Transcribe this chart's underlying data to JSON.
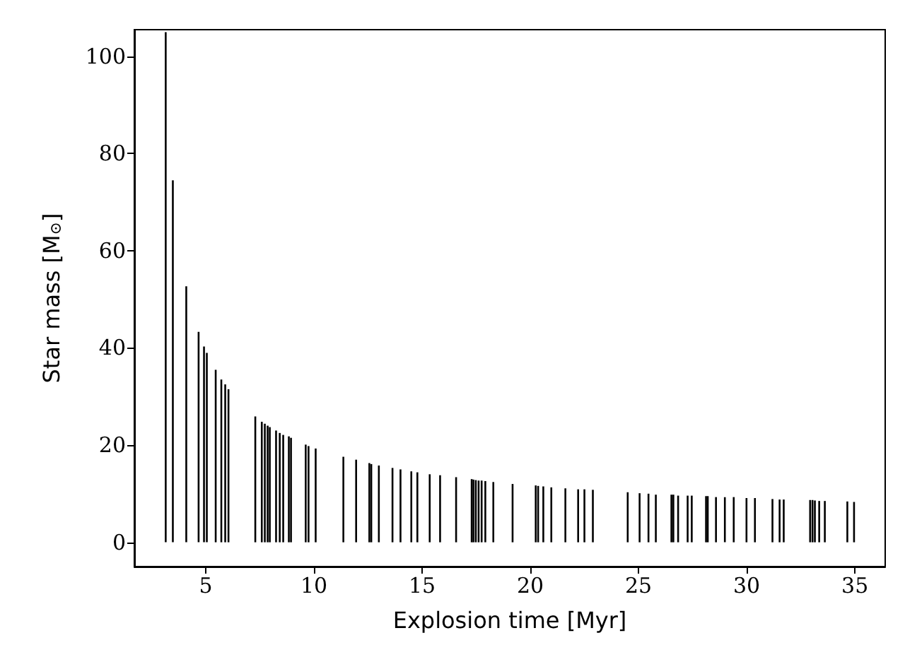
{
  "chart_data": {
    "type": "bar",
    "xlabel": "Explosion time [Myr]",
    "ylabel": "Star mass [M$_{⊙}$]",
    "color": "#000000",
    "x": [
      3.15,
      3.48,
      4.1,
      4.67,
      4.92,
      5.05,
      5.46,
      5.72,
      5.9,
      6.05,
      7.29,
      7.59,
      7.73,
      7.86,
      7.96,
      8.25,
      8.42,
      8.58,
      8.84,
      8.94,
      9.62,
      9.75,
      10.08,
      11.36,
      11.95,
      12.56,
      12.65,
      13.0,
      13.63,
      14.0,
      14.5,
      14.78,
      15.35,
      15.83,
      16.57,
      17.29,
      17.37,
      17.48,
      17.61,
      17.75,
      17.92,
      18.29,
      19.18,
      20.25,
      20.36,
      20.6,
      20.97,
      21.62,
      22.21,
      22.5,
      22.89,
      24.5,
      25.05,
      25.46,
      25.8,
      26.52,
      26.61,
      26.83,
      27.27,
      27.46,
      28.12,
      28.2,
      28.58,
      28.99,
      29.4,
      29.99,
      30.38,
      31.19,
      31.52,
      31.71,
      32.93,
      33.04,
      33.15,
      33.35,
      33.61,
      34.65,
      34.96
    ],
    "values": [
      105,
      74.5,
      52.7,
      43.3,
      40.3,
      39,
      35.5,
      33.5,
      32.5,
      31.5,
      25.9,
      24.8,
      24.4,
      24.0,
      23.7,
      23.0,
      22.5,
      22.1,
      21.8,
      21.5,
      20.1,
      19.8,
      19.3,
      17.6,
      17.0,
      16.3,
      16.1,
      15.8,
      15.3,
      15.0,
      14.6,
      14.4,
      14.0,
      13.8,
      13.4,
      13.0,
      12.9,
      12.8,
      12.7,
      12.7,
      12.6,
      12.4,
      12.0,
      11.7,
      11.6,
      11.5,
      11.3,
      11.1,
      10.9,
      10.9,
      10.8,
      10.3,
      10.1,
      10.0,
      9.8,
      9.8,
      9.8,
      9.6,
      9.6,
      9.6,
      9.5,
      9.5,
      9.3,
      9.3,
      9.3,
      9.1,
      9.1,
      8.9,
      8.8,
      8.8,
      8.7,
      8.7,
      8.6,
      8.5,
      8.5,
      8.4,
      8.3
    ],
    "xlim": [
      1.7,
      36.4
    ],
    "ylim": [
      -5,
      105.5
    ],
    "xticks": [
      5,
      10,
      15,
      20,
      25,
      30,
      35
    ],
    "yticks": [
      0,
      20,
      40,
      60,
      80,
      100
    ],
    "grid": false
  }
}
